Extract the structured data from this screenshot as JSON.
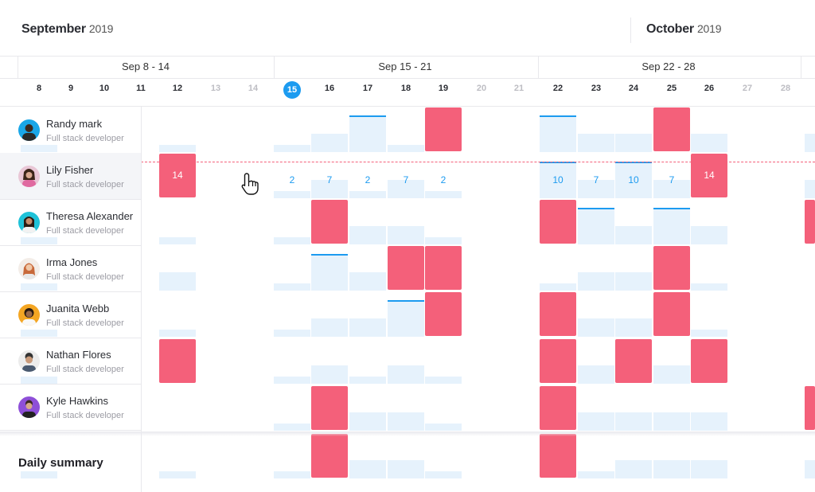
{
  "header": {
    "months": [
      {
        "name": "September",
        "year": "2019"
      },
      {
        "name": "October",
        "year": "2019"
      }
    ],
    "weeks": [
      "Sep 8 - 14",
      "Sep 15 - 21",
      "Sep 22 - 28"
    ],
    "days": [
      {
        "label": "8",
        "weekend": false
      },
      {
        "label": "9",
        "weekend": false
      },
      {
        "label": "10",
        "weekend": false
      },
      {
        "label": "11",
        "weekend": false
      },
      {
        "label": "12",
        "weekend": false
      },
      {
        "label": "13",
        "weekend": true
      },
      {
        "label": "14",
        "weekend": true
      },
      {
        "label": "15",
        "weekend": false,
        "today": true
      },
      {
        "label": "16",
        "weekend": false
      },
      {
        "label": "17",
        "weekend": false
      },
      {
        "label": "18",
        "weekend": false
      },
      {
        "label": "19",
        "weekend": false
      },
      {
        "label": "20",
        "weekend": true
      },
      {
        "label": "21",
        "weekend": true
      },
      {
        "label": "22",
        "weekend": false
      },
      {
        "label": "23",
        "weekend": false
      },
      {
        "label": "24",
        "weekend": false
      },
      {
        "label": "25",
        "weekend": false
      },
      {
        "label": "26",
        "weekend": false
      },
      {
        "label": "27",
        "weekend": true
      },
      {
        "label": "28",
        "weekend": true
      }
    ]
  },
  "people": [
    {
      "name": "Randy mark",
      "role": "Full stack developer",
      "avatar_color": "#1aa7e8"
    },
    {
      "name": "Lily Fisher",
      "role": "Full stack developer",
      "avatar_color": "#e9c7d6",
      "active": true
    },
    {
      "name": "Theresa Alexander",
      "role": "Full stack developer",
      "avatar_color": "#1fc2d8"
    },
    {
      "name": "Irma Jones",
      "role": "Full stack developer",
      "avatar_color": "#f3ede8"
    },
    {
      "name": "Juanita Webb",
      "role": "Full stack developer",
      "avatar_color": "#f4a623"
    },
    {
      "name": "Nathan Flores",
      "role": "Full stack developer",
      "avatar_color": "#ececec"
    },
    {
      "name": "Kyle Hawkins",
      "role": "Full stack developer",
      "avatar_color": "#8e4fd8"
    }
  ],
  "summary": {
    "title": "Daily summary"
  },
  "lily_row_values": {
    "12": "14",
    "15": "2",
    "16": "7",
    "17": "2",
    "18": "7",
    "19": "2",
    "22": "10",
    "23": "7",
    "24": "10",
    "25": "7",
    "26": "14"
  },
  "colors": {
    "accent": "#1c9bf0",
    "off": "#f4607a",
    "light": "#e6f2fc"
  }
}
